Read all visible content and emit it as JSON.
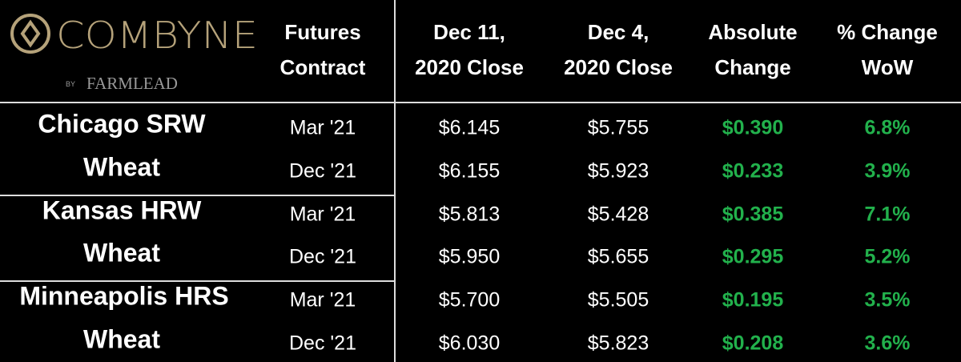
{
  "logo": {
    "name": "COMBYNE",
    "by": "BY",
    "partner": "FARMLEAD"
  },
  "table": {
    "headers": [
      [
        "Futures",
        "Contract"
      ],
      [
        "Dec 11,",
        "2020 Close"
      ],
      [
        "Dec 4,",
        "2020 Close"
      ],
      [
        "Absolute",
        "Change"
      ],
      [
        "% Change",
        "WoW"
      ]
    ],
    "groups": [
      {
        "commodity": [
          "Chicago SRW",
          "Wheat"
        ],
        "rows": [
          [
            "Mar '21",
            "$6.145",
            "$5.755",
            "$0.390",
            "6.8%"
          ],
          [
            "Dec '21",
            "$6.155",
            "$5.923",
            "$0.233",
            "3.9%"
          ]
        ]
      },
      {
        "commodity": [
          "Kansas HRW",
          "Wheat"
        ],
        "rows": [
          [
            "Mar '21",
            "$5.813",
            "$5.428",
            "$0.385",
            "7.1%"
          ],
          [
            "Dec '21",
            "$5.950",
            "$5.655",
            "$0.295",
            "5.2%"
          ]
        ]
      },
      {
        "commodity": [
          "Minneapolis HRS",
          "Wheat"
        ],
        "rows": [
          [
            "Mar '21",
            "$5.700",
            "$5.505",
            "$0.195",
            "3.5%"
          ],
          [
            "Dec '21",
            "$6.030",
            "$5.823",
            "$0.208",
            "3.6%"
          ]
        ]
      }
    ]
  }
}
